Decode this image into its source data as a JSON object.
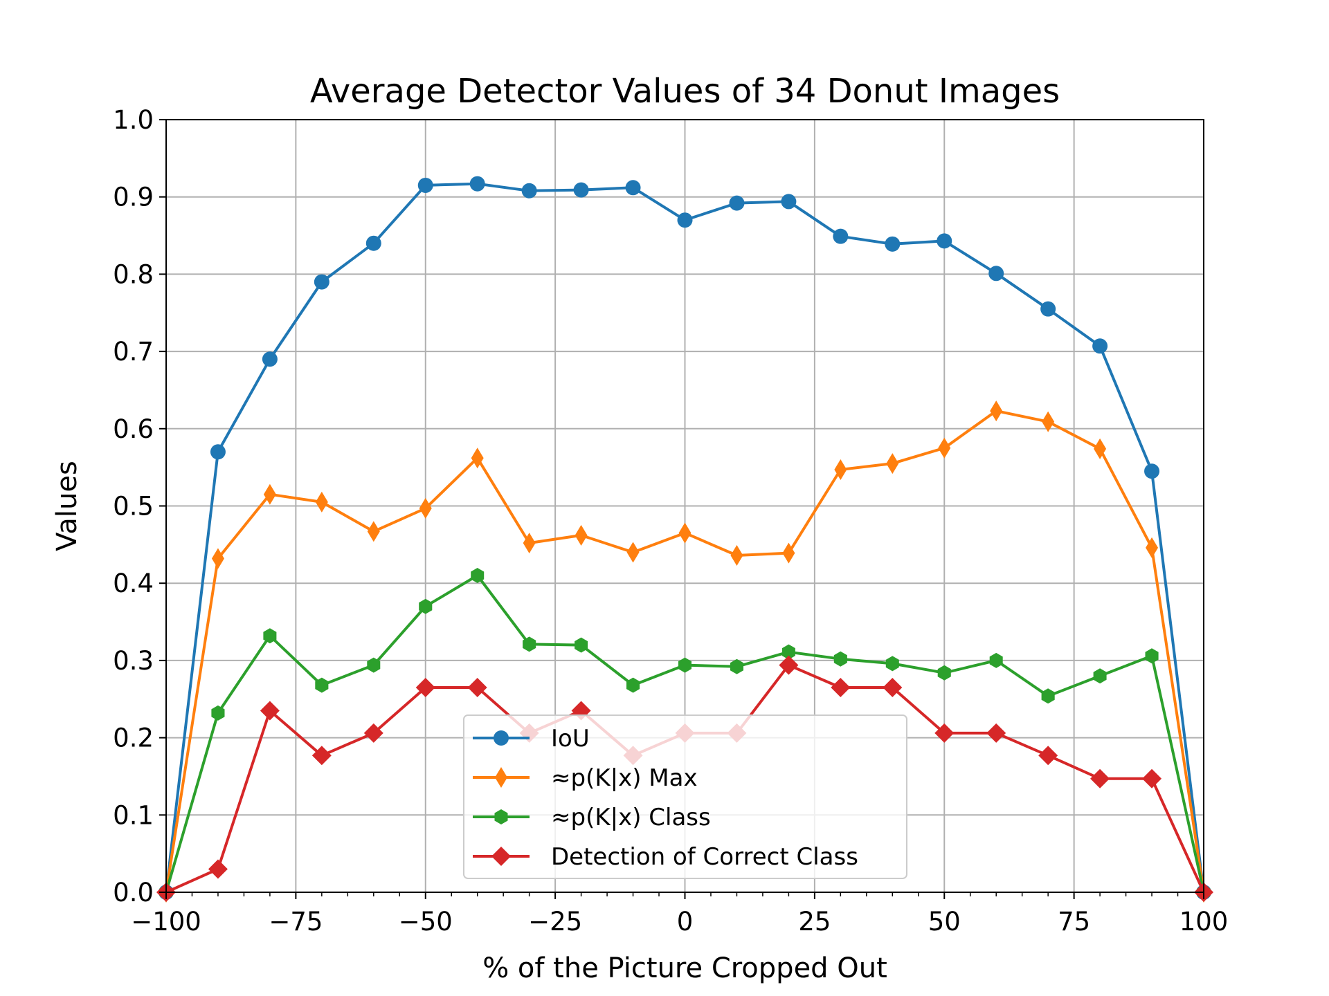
{
  "chart_data": {
    "type": "line",
    "title": "Average Detector Values of 34 Donut Images",
    "xlabel": "% of the Picture Cropped Out",
    "ylabel": "Values",
    "xlim": [
      -100,
      100
    ],
    "ylim": [
      0.0,
      1.0
    ],
    "grid": true,
    "legend_position": "bottom-center",
    "x_ticks": [
      "−100",
      "−75",
      "−50",
      "−25",
      "0",
      "25",
      "50",
      "75",
      "100"
    ],
    "y_ticks": [
      "0.0",
      "0.1",
      "0.2",
      "0.3",
      "0.4",
      "0.5",
      "0.6",
      "0.7",
      "0.8",
      "0.9",
      "1.0"
    ],
    "x": [
      -100,
      -90,
      -80,
      -70,
      -60,
      -50,
      -40,
      -30,
      -20,
      -10,
      0,
      10,
      20,
      30,
      40,
      50,
      60,
      70,
      80,
      90,
      100
    ],
    "series": [
      {
        "name": "IoU",
        "color": "#1f77b4",
        "marker": "circle",
        "values": [
          0.0,
          0.57,
          0.69,
          0.79,
          0.84,
          0.915,
          0.917,
          0.908,
          0.909,
          0.912,
          0.87,
          0.892,
          0.894,
          0.849,
          0.839,
          0.843,
          0.801,
          0.755,
          0.707,
          0.545,
          0.0
        ]
      },
      {
        "name": "≈p(K|x) Max",
        "color": "#ff7f0e",
        "marker": "thin_diamond",
        "values": [
          0.0,
          0.432,
          0.515,
          0.505,
          0.467,
          0.497,
          0.562,
          0.452,
          0.462,
          0.44,
          0.465,
          0.436,
          0.439,
          0.547,
          0.555,
          0.575,
          0.623,
          0.609,
          0.574,
          0.446,
          0.0
        ]
      },
      {
        "name": "≈p(K|x) Class",
        "color": "#2ca02c",
        "marker": "hexagon",
        "values": [
          0.0,
          0.232,
          0.332,
          0.268,
          0.294,
          0.37,
          0.41,
          0.321,
          0.32,
          0.268,
          0.294,
          0.292,
          0.311,
          0.302,
          0.296,
          0.284,
          0.3,
          0.254,
          0.28,
          0.306,
          0.0
        ]
      },
      {
        "name": "Detection of Correct Class",
        "color": "#d62728",
        "marker": "diamond",
        "values": [
          0.0,
          0.03,
          0.235,
          0.177,
          0.206,
          0.265,
          0.265,
          0.206,
          0.235,
          0.177,
          0.206,
          0.206,
          0.294,
          0.265,
          0.265,
          0.206,
          0.206,
          0.177,
          0.147,
          0.147,
          0.0
        ]
      }
    ]
  }
}
